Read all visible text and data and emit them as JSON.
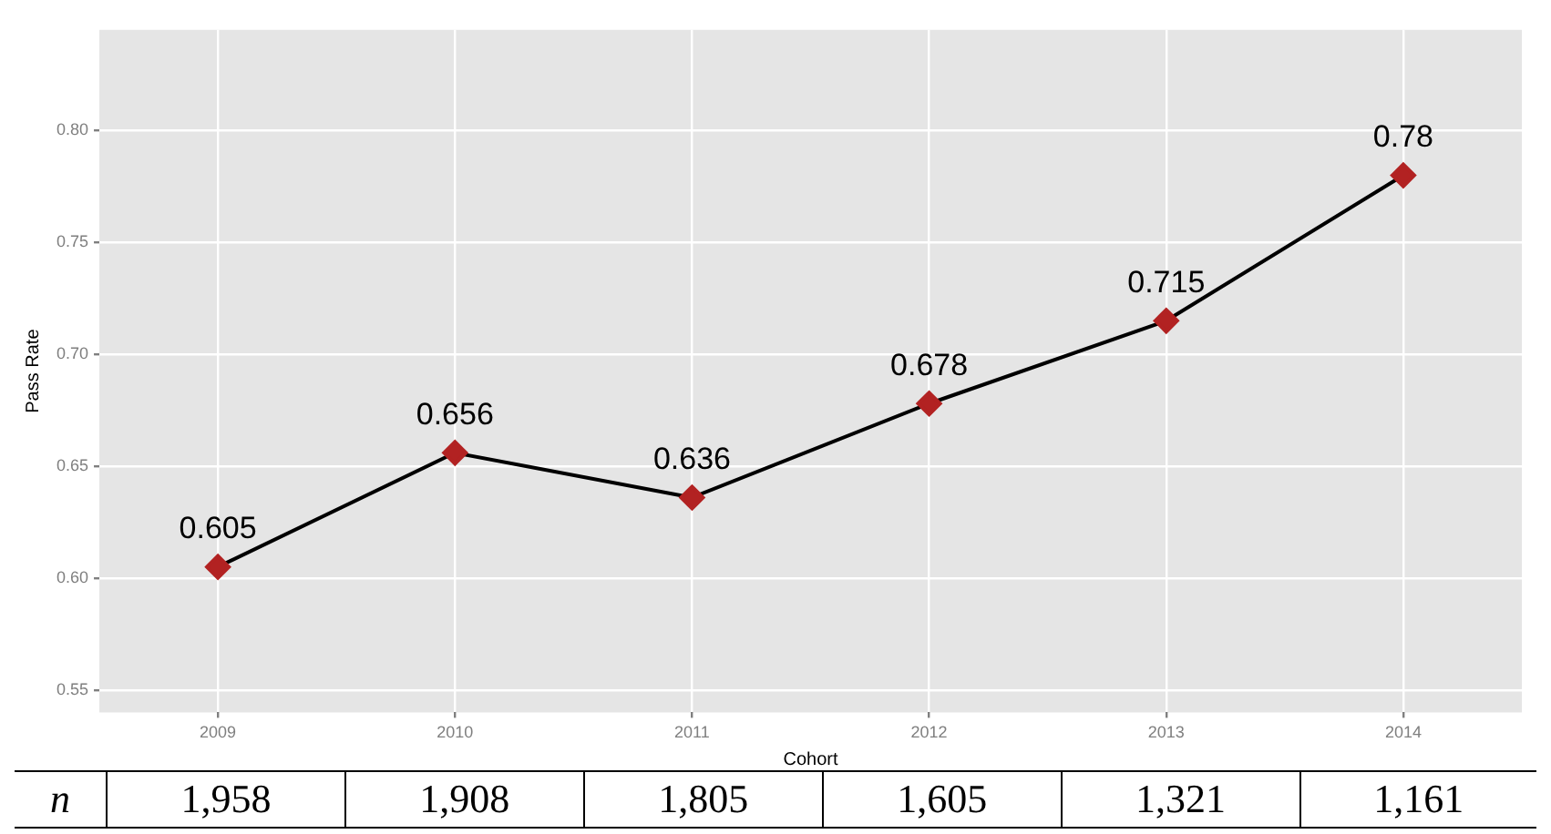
{
  "chart_data": {
    "type": "line",
    "xlabel": "Cohort",
    "ylabel": "Pass Rate",
    "categories": [
      "2009",
      "2010",
      "2011",
      "2012",
      "2013",
      "2014"
    ],
    "series": [
      {
        "color": "#000000",
        "colors": [
          "#b22222",
          "#b22222",
          "#b22222",
          "#b22222",
          "#b22222",
          "#b22222"
        ],
        "values": [
          0.605,
          0.656,
          0.636,
          0.678,
          0.715,
          0.78
        ]
      }
    ],
    "ylim": [
      0.54,
      0.845
    ],
    "yticks": [
      {
        "value": 0.55,
        "label": "0.55"
      },
      {
        "value": 0.6,
        "label": "0.60"
      },
      {
        "value": 0.65,
        "label": "0.65"
      },
      {
        "value": 0.7,
        "label": "0.70"
      },
      {
        "value": 0.75,
        "label": "0.75"
      },
      {
        "value": 0.8,
        "label": "0.80"
      }
    ],
    "grid": true,
    "marker": "diamond",
    "line_style": "solid",
    "data_labels": true,
    "legend": false,
    "annotations": [
      "n",
      "1,958",
      "1,908",
      "1,805",
      "1,605",
      "1,321",
      "1,161"
    ]
  }
}
